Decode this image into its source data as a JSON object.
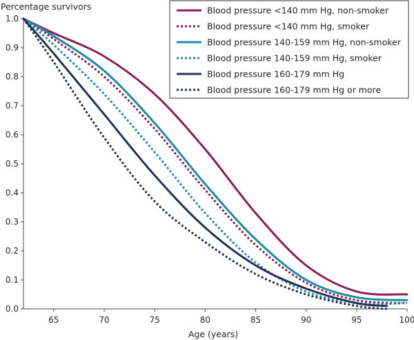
{
  "chart_data": {
    "type": "line",
    "ylabel": "Percentage survivors",
    "xlabel": "Age (years)",
    "xlim": [
      62,
      100
    ],
    "ylim": [
      0,
      1
    ],
    "xticks": [
      65,
      70,
      75,
      80,
      85,
      90,
      95,
      100
    ],
    "yticks": [
      "0.0",
      "0.1",
      "0.2",
      "0.3",
      "0.4",
      "0.5",
      "0.6",
      "0.7",
      "0.8",
      "0.9",
      "1.0"
    ],
    "legend_position": "top-right",
    "series": [
      {
        "name": "Blood pressure <140 mm Hg, non-smoker",
        "color": "#8b1e4f",
        "style": "solid",
        "x": [
          62,
          65,
          70,
          75,
          80,
          85,
          90,
          95,
          100
        ],
        "y": [
          1.0,
          0.95,
          0.87,
          0.74,
          0.55,
          0.33,
          0.15,
          0.06,
          0.05
        ]
      },
      {
        "name": "Blood pressure <140 mm Hg, smoker",
        "color": "#8b1e4f",
        "style": "dotted",
        "x": [
          62,
          65,
          70,
          75,
          80,
          85,
          90,
          95,
          100
        ],
        "y": [
          1.0,
          0.93,
          0.8,
          0.62,
          0.41,
          0.22,
          0.09,
          0.03,
          0.02
        ]
      },
      {
        "name": "Blood pressure 140-159 mm Hg, non-smoker",
        "color": "#1a8aa8",
        "style": "solid",
        "x": [
          62,
          65,
          70,
          75,
          80,
          85,
          90,
          95,
          100
        ],
        "y": [
          1.0,
          0.94,
          0.82,
          0.64,
          0.43,
          0.24,
          0.1,
          0.04,
          0.03
        ]
      },
      {
        "name": "Blood pressure 140-159 mm Hg, smoker",
        "color": "#1a8aa8",
        "style": "dotted",
        "x": [
          62,
          65,
          70,
          75,
          80,
          85,
          90,
          95,
          100
        ],
        "y": [
          1.0,
          0.91,
          0.74,
          0.54,
          0.33,
          0.16,
          0.06,
          0.02,
          0.02
        ]
      },
      {
        "name": "Blood pressure 160-179 mm Hg",
        "color": "#26304f",
        "style": "solid",
        "x": [
          62,
          65,
          70,
          75,
          80,
          85,
          90,
          95,
          98
        ],
        "y": [
          1.0,
          0.88,
          0.67,
          0.46,
          0.28,
          0.15,
          0.07,
          0.02,
          0.01
        ]
      },
      {
        "name": "Blood pressure 160-179 mm Hg or more",
        "color": "#26304f",
        "style": "dotted",
        "x": [
          62,
          65,
          70,
          75,
          80,
          85,
          90,
          95,
          98
        ],
        "y": [
          1.0,
          0.85,
          0.59,
          0.37,
          0.23,
          0.12,
          0.05,
          0.01,
          0.0
        ]
      }
    ]
  }
}
